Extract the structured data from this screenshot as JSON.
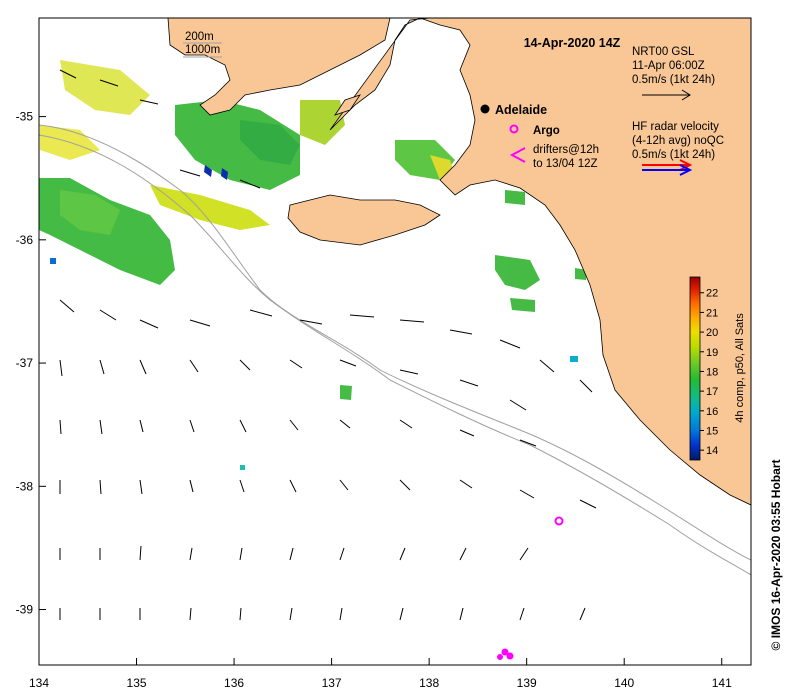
{
  "map": {
    "title": "14-Apr-2020 14Z",
    "credit": "© IMOS 16-Apr-2020 03:55 Hobart",
    "x_ticks": [
      "134",
      "135",
      "136",
      "137",
      "138",
      "139",
      "140",
      "141"
    ],
    "y_ticks": [
      "-35",
      "-36",
      "-37",
      "-38",
      "-39"
    ],
    "lon_range": [
      134,
      141.3
    ],
    "lat_range": [
      -39.45,
      -34.2
    ],
    "contours_legend": [
      "200m",
      "1000m"
    ],
    "places": {
      "adelaide": "Adelaide",
      "argo": "Argo"
    },
    "drifters": [
      "drifters@12h",
      "to 13/04 12Z"
    ],
    "nrt_legend": [
      "NRT00 GSL",
      "11-Apr 06:00Z",
      "0.5m/s (1kt 24h)"
    ],
    "hf_legend": [
      "HF radar velocity",
      "(4-12h avg) noQC",
      "0.5m/s (1kt 24h)"
    ],
    "colorbar": {
      "label": "4h comp, p50, All Sats",
      "ticks": [
        "14",
        "15",
        "16",
        "17",
        "18",
        "19",
        "20",
        "21",
        "22"
      ],
      "range": [
        13.5,
        22.8
      ]
    },
    "colors": {
      "land": "#f9c795",
      "ocean": "#ffffff",
      "argo": "#ff00ff",
      "hf_red": "#ff0000",
      "hf_blue": "#0000ff",
      "contour": "#a0a0a0"
    }
  }
}
